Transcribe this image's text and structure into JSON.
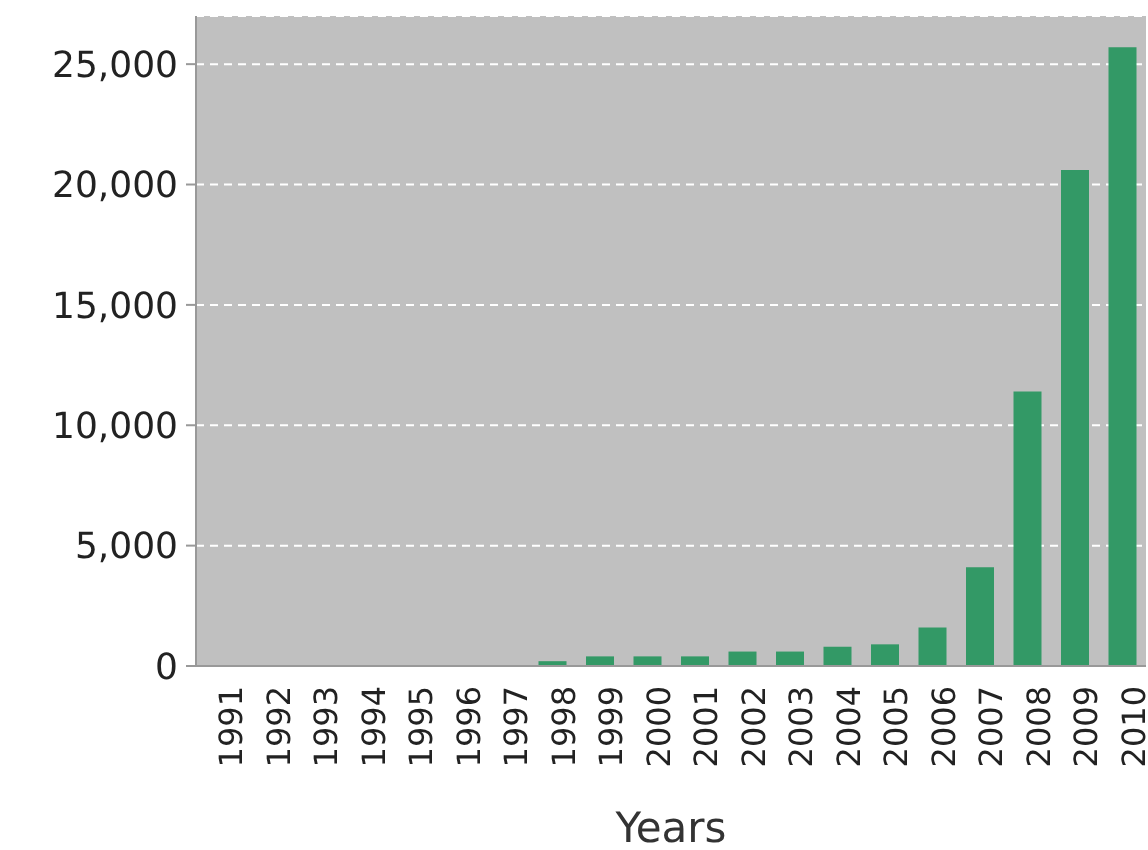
{
  "chart_data": {
    "type": "bar",
    "xlabel": "Years",
    "categories": [
      "1991",
      "1992",
      "1993",
      "1994",
      "1995",
      "1996",
      "1997",
      "1998",
      "1999",
      "2000",
      "2001",
      "2002",
      "2003",
      "2004",
      "2005",
      "2006",
      "2007",
      "2008",
      "2009",
      "2010"
    ],
    "values": [
      0,
      0,
      0,
      0,
      0,
      0,
      0,
      200,
      400,
      400,
      400,
      600,
      600,
      800,
      900,
      1600,
      4100,
      11400,
      20600,
      25700
    ],
    "color": "#339966",
    "ylim": [
      0,
      27000
    ],
    "yticks": [
      0,
      {
        "value": 5000,
        "label": "5,000"
      },
      {
        "value": 10000,
        "label": "10,000"
      },
      {
        "value": 15000,
        "label": "15,000"
      },
      {
        "value": 20000,
        "label": "20,000"
      },
      {
        "value": 25000,
        "label": "25,000"
      }
    ],
    "grid": "y"
  }
}
